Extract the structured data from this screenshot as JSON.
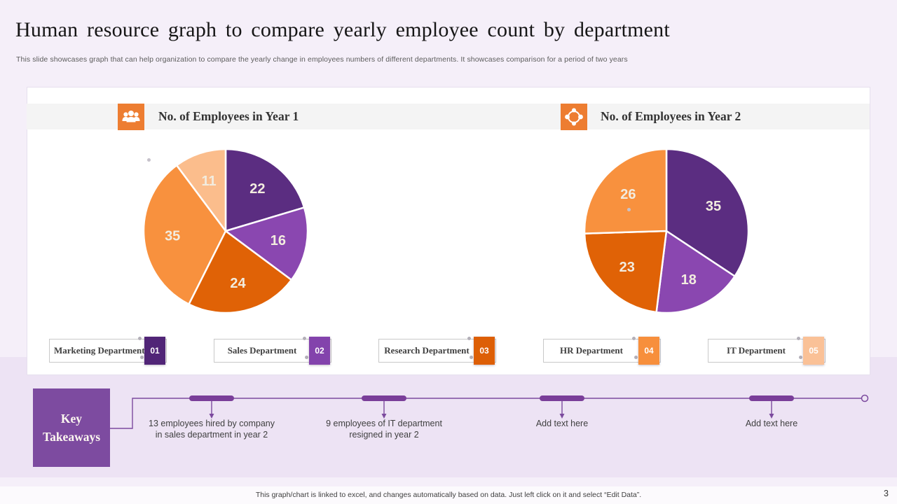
{
  "slide": {
    "title": "Human resource graph to compare yearly employee count by department",
    "subtitle": "This slide showcases graph that can help organization to compare the yearly change in employees numbers of different departments. It showcases comparison for a period of two years",
    "footer_note": "This graph/chart is linked to excel, and changes automatically based on data. Just left click on it and select “Edit Data”.",
    "page_number": "3"
  },
  "icons": {
    "year1": "people-group-icon",
    "year2": "network-share-icon"
  },
  "chart_headers": {
    "year1": "No. of Employees in Year 1",
    "year2": "No. of Employees in Year 2"
  },
  "chart_data": [
    {
      "type": "pie",
      "title": "No. of Employees in Year 1",
      "labels": [
        "Marketing Department",
        "Sales Department",
        "Research Department",
        "HR Department",
        "IT Department"
      ],
      "values": [
        22,
        16,
        24,
        35,
        11
      ],
      "colors": [
        "#5B2D81",
        "#8A47B0",
        "#E06206",
        "#F8913E",
        "#FBBD8C"
      ],
      "data_label_color": "#F2ECDF",
      "start_angle": "top, clockwise",
      "legend_position": "bottom shared"
    },
    {
      "type": "pie",
      "title": "No. of Employees in Year 2",
      "labels": [
        "Marketing Department",
        "Sales Department",
        "Research Department",
        "HR Department"
      ],
      "values": [
        35,
        18,
        23,
        26
      ],
      "colors": [
        "#5B2D81",
        "#8A47B0",
        "#E06206",
        "#F8913E"
      ],
      "data_label_color": "#F2ECDF",
      "start_angle": "top, clockwise",
      "legend_position": "bottom shared"
    }
  ],
  "legend": {
    "items": [
      {
        "label": "Marketing Department",
        "number": "01",
        "badge_color": "#512577"
      },
      {
        "label": "Sales Department",
        "number": "02",
        "badge_color": "#8343AC"
      },
      {
        "label": "Research Department",
        "number": "03",
        "badge_color": "#DD5F06"
      },
      {
        "label": "HR Department",
        "number": "04",
        "badge_color": "#F78F3C"
      },
      {
        "label": "IT Department",
        "number": "05",
        "badge_color": "#FAC197"
      }
    ]
  },
  "key_takeaways": {
    "title": "Key Takeaways",
    "items": [
      {
        "text": "13 employees hired by company in sales department in year 2"
      },
      {
        "text": "9 employees of IT department resigned in year 2"
      },
      {
        "text": "Add text here"
      },
      {
        "text": "Add text here"
      }
    ]
  },
  "colors": {
    "background": "#F5EFF9",
    "mid_band": "#EDE3F4",
    "accent_orange": "#ED7D31",
    "accent_purple": "#7D4BA0",
    "timeline_line": "#7C4A9E",
    "timeline_pill": "#7A3E99",
    "pie_label": "#F2ECDF"
  }
}
